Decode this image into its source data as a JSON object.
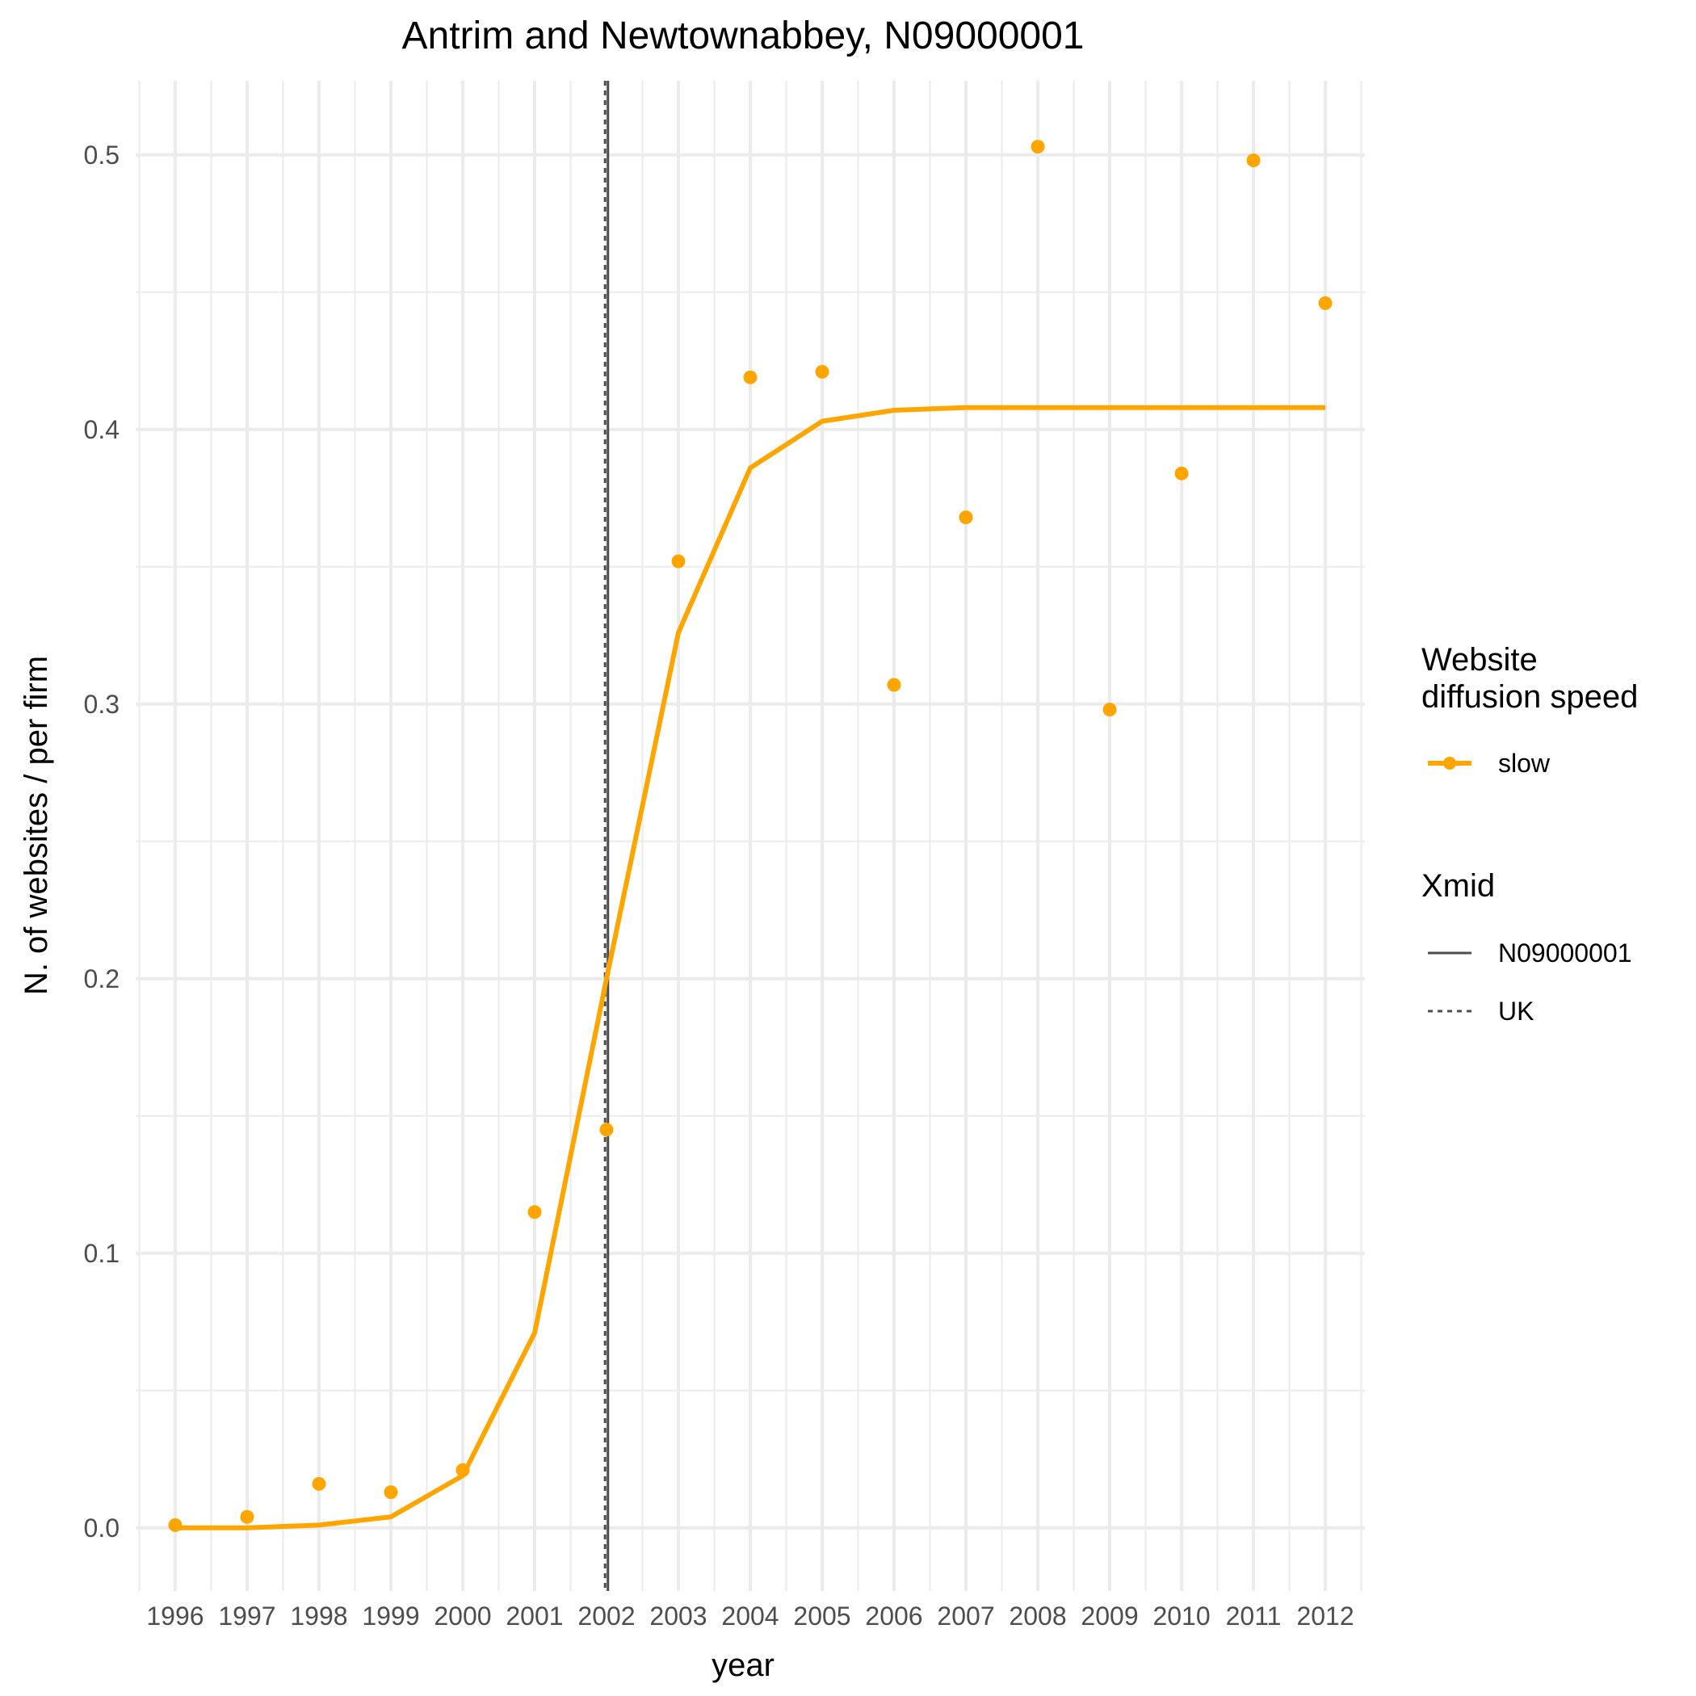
{
  "chart_data": {
    "type": "line",
    "title": "Antrim and Newtownabbey, N09000001",
    "xlabel": "year",
    "ylabel": "N. of websites / per firm",
    "x_ticks": [
      "1996",
      "1997",
      "1998",
      "1999",
      "2000",
      "2001",
      "2002",
      "2003",
      "2004",
      "2005",
      "2006",
      "2007",
      "2008",
      "2009",
      "2010",
      "2011",
      "2012"
    ],
    "y_ticks": [
      "0.0",
      "0.1",
      "0.2",
      "0.3",
      "0.4",
      "0.5"
    ],
    "xlim": [
      1995.45,
      2012.55
    ],
    "ylim": [
      -0.023,
      0.527
    ],
    "grid": true,
    "colors": {
      "series": "#FFA500",
      "vline": "#4d4d4d",
      "grid": "#ebebeb"
    },
    "series": [
      {
        "name": "slow",
        "kind": "line",
        "x": [
          1996,
          1997,
          1998,
          1999,
          2000,
          2001,
          2002,
          2003,
          2004,
          2005,
          2006,
          2007,
          2008,
          2009,
          2010,
          2011,
          2012
        ],
        "y": [
          0.0,
          0.0,
          0.001,
          0.004,
          0.019,
          0.071,
          0.2,
          0.326,
          0.386,
          0.403,
          0.407,
          0.408,
          0.408,
          0.408,
          0.408,
          0.408,
          0.408
        ]
      },
      {
        "name": "slow",
        "kind": "points",
        "x": [
          1996,
          1997,
          1998,
          1999,
          2000,
          2001,
          2002,
          2003,
          2004,
          2005,
          2006,
          2007,
          2008,
          2009,
          2010,
          2011,
          2012
        ],
        "y": [
          0.001,
          0.004,
          0.016,
          0.013,
          0.021,
          0.115,
          0.145,
          0.352,
          0.419,
          0.421,
          0.307,
          0.368,
          0.503,
          0.298,
          0.384,
          0.498,
          0.446
        ]
      }
    ],
    "vlines": [
      {
        "name": "N09000001",
        "x": 2002.02,
        "linetype": "solid"
      },
      {
        "name": "UK",
        "x": 2001.98,
        "linetype": "dashed"
      }
    ],
    "legends": [
      {
        "title_lines": [
          "Website",
          "diffusion speed"
        ],
        "entries": [
          "slow"
        ]
      },
      {
        "title_lines": [
          "Xmid"
        ],
        "entries": [
          "N09000001",
          "UK"
        ]
      }
    ],
    "legend_position": "right"
  }
}
